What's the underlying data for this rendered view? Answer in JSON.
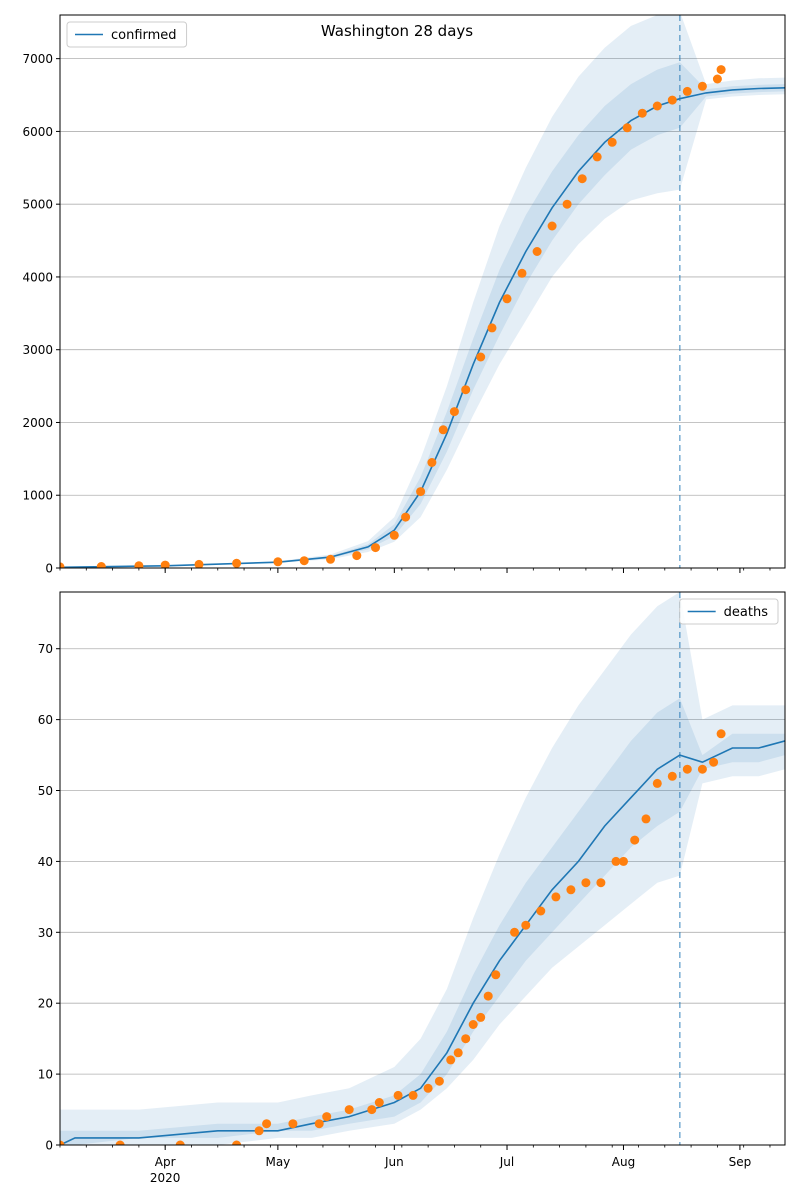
{
  "title": "Washington 28 days",
  "x_ticks": [
    {
      "date": "2020-04-01",
      "label": "Apr",
      "sub": "2020"
    },
    {
      "date": "2020-05-01",
      "label": "May",
      "sub": ""
    },
    {
      "date": "2020-06-01",
      "label": "Jun",
      "sub": ""
    },
    {
      "date": "2020-07-01",
      "label": "Jul",
      "sub": ""
    },
    {
      "date": "2020-08-01",
      "label": "Aug",
      "sub": ""
    },
    {
      "date": "2020-09-01",
      "label": "Sep",
      "sub": ""
    }
  ],
  "colors": {
    "model": "#1f77b4",
    "observed": "#ff7f0e",
    "band": "#1f77b4",
    "grid": "#b0b0b0"
  },
  "chart_data": [
    {
      "type": "line",
      "legend": "confirmed",
      "legend_position": "top-left",
      "grid": "y",
      "xlim": [
        "2020-03-04",
        "2020-09-13"
      ],
      "ylim": [
        0,
        7600
      ],
      "y_ticks": [
        0,
        1000,
        2000,
        3000,
        4000,
        5000,
        6000,
        7000
      ],
      "forecast_start": "2020-08-16",
      "model": {
        "x": [
          "2020-03-04",
          "2020-04-01",
          "2020-05-01",
          "2020-05-15",
          "2020-05-25",
          "2020-06-01",
          "2020-06-08",
          "2020-06-15",
          "2020-06-22",
          "2020-06-29",
          "2020-07-06",
          "2020-07-13",
          "2020-07-20",
          "2020-07-27",
          "2020-08-03",
          "2020-08-10",
          "2020-08-16",
          "2020-08-23",
          "2020-08-30",
          "2020-09-06",
          "2020-09-13"
        ],
        "median": [
          10,
          30,
          80,
          150,
          290,
          520,
          1050,
          1850,
          2800,
          3650,
          4350,
          4950,
          5450,
          5850,
          6150,
          6350,
          6450,
          6530,
          6570,
          6590,
          6600
        ],
        "inner_low": [
          10,
          28,
          75,
          135,
          255,
          440,
          880,
          1600,
          2450,
          3200,
          3900,
          4500,
          5000,
          5400,
          5750,
          5950,
          6050,
          6480,
          6520,
          6540,
          6550
        ],
        "inner_high": [
          10,
          32,
          85,
          165,
          325,
          600,
          1250,
          2150,
          3150,
          4100,
          4850,
          5450,
          5950,
          6350,
          6650,
          6850,
          6950,
          6580,
          6620,
          6640,
          6650
        ],
        "outer_low": [
          10,
          26,
          70,
          120,
          220,
          360,
          700,
          1350,
          2100,
          2800,
          3400,
          4000,
          4450,
          4800,
          5050,
          5150,
          5200,
          6440,
          6480,
          6500,
          6510
        ],
        "outer_high": [
          10,
          35,
          92,
          185,
          370,
          700,
          1500,
          2500,
          3650,
          4700,
          5500,
          6200,
          6750,
          7150,
          7450,
          7600,
          7650,
          6650,
          6700,
          6730,
          6740
        ]
      },
      "observed": {
        "x": [
          "2020-03-04",
          "2020-03-15",
          "2020-03-25",
          "2020-04-01",
          "2020-04-10",
          "2020-04-20",
          "2020-05-01",
          "2020-05-08",
          "2020-05-15",
          "2020-05-22",
          "2020-05-27",
          "2020-06-01",
          "2020-06-04",
          "2020-06-08",
          "2020-06-11",
          "2020-06-14",
          "2020-06-17",
          "2020-06-20",
          "2020-06-24",
          "2020-06-27",
          "2020-07-01",
          "2020-07-05",
          "2020-07-09",
          "2020-07-13",
          "2020-07-17",
          "2020-07-21",
          "2020-07-25",
          "2020-07-29",
          "2020-08-02",
          "2020-08-06",
          "2020-08-10",
          "2020-08-14",
          "2020-08-18",
          "2020-08-22",
          "2020-08-26",
          "2020-08-27"
        ],
        "y": [
          15,
          20,
          30,
          40,
          50,
          65,
          85,
          100,
          120,
          170,
          280,
          450,
          700,
          1050,
          1450,
          1900,
          2150,
          2450,
          2900,
          3300,
          3700,
          4050,
          4350,
          4700,
          5000,
          5350,
          5650,
          5850,
          6050,
          6250,
          6350,
          6430,
          6550,
          6620,
          6720,
          6850
        ]
      }
    },
    {
      "type": "line",
      "legend": "deaths",
      "legend_position": "top-right",
      "grid": "y",
      "xlim": [
        "2020-03-04",
        "2020-09-13"
      ],
      "ylim": [
        0,
        78
      ],
      "y_ticks": [
        0,
        10,
        20,
        30,
        40,
        50,
        60,
        70
      ],
      "forecast_start": "2020-08-16",
      "model": {
        "x": [
          "2020-03-04",
          "2020-03-08",
          "2020-03-25",
          "2020-04-15",
          "2020-05-01",
          "2020-05-10",
          "2020-05-20",
          "2020-06-01",
          "2020-06-08",
          "2020-06-15",
          "2020-06-22",
          "2020-06-29",
          "2020-07-06",
          "2020-07-13",
          "2020-07-20",
          "2020-07-27",
          "2020-08-03",
          "2020-08-10",
          "2020-08-16",
          "2020-08-22",
          "2020-08-30",
          "2020-09-06",
          "2020-09-13"
        ],
        "median": [
          0,
          1,
          1,
          2,
          2,
          3,
          4,
          6,
          8,
          13,
          20,
          26,
          31,
          36,
          40,
          45,
          49,
          53,
          55,
          54,
          56,
          56,
          57
        ],
        "inner_low": [
          0,
          0,
          1,
          1,
          2,
          2,
          3,
          4,
          6,
          10,
          16,
          21,
          26,
          30,
          34,
          38,
          42,
          45,
          47,
          53,
          54,
          54,
          55
        ],
        "inner_high": [
          2,
          2,
          2,
          3,
          3,
          4,
          5,
          7,
          10,
          16,
          24,
          31,
          37,
          42,
          47,
          52,
          57,
          61,
          63,
          55,
          58,
          58,
          58
        ],
        "outer_low": [
          0,
          0,
          0,
          0,
          1,
          1,
          2,
          3,
          5,
          8,
          12,
          17,
          21,
          25,
          28,
          31,
          34,
          37,
          38,
          51,
          52,
          52,
          53
        ],
        "outer_high": [
          5,
          5,
          5,
          6,
          6,
          7,
          8,
          11,
          15,
          22,
          32,
          41,
          49,
          56,
          62,
          67,
          72,
          76,
          78,
          60,
          62,
          62,
          62
        ]
      },
      "observed": {
        "x": [
          "2020-03-04",
          "2020-03-20",
          "2020-04-05",
          "2020-04-20",
          "2020-04-26",
          "2020-04-28",
          "2020-05-05",
          "2020-05-12",
          "2020-05-14",
          "2020-05-20",
          "2020-05-26",
          "2020-05-28",
          "2020-06-02",
          "2020-06-06",
          "2020-06-10",
          "2020-06-13",
          "2020-06-16",
          "2020-06-18",
          "2020-06-20",
          "2020-06-22",
          "2020-06-24",
          "2020-06-26",
          "2020-06-28",
          "2020-07-03",
          "2020-07-06",
          "2020-07-10",
          "2020-07-14",
          "2020-07-18",
          "2020-07-22",
          "2020-07-26",
          "2020-07-30",
          "2020-08-01",
          "2020-08-04",
          "2020-08-07",
          "2020-08-10",
          "2020-08-14",
          "2020-08-18",
          "2020-08-22",
          "2020-08-25",
          "2020-08-27"
        ],
        "y": [
          0,
          0,
          0,
          0,
          2,
          3,
          3,
          3,
          4,
          5,
          5,
          6,
          7,
          7,
          8,
          9,
          12,
          13,
          15,
          17,
          18,
          21,
          24,
          30,
          31,
          33,
          35,
          36,
          37,
          37,
          40,
          40,
          43,
          46,
          51,
          52,
          53,
          53,
          54,
          58
        ]
      }
    }
  ]
}
